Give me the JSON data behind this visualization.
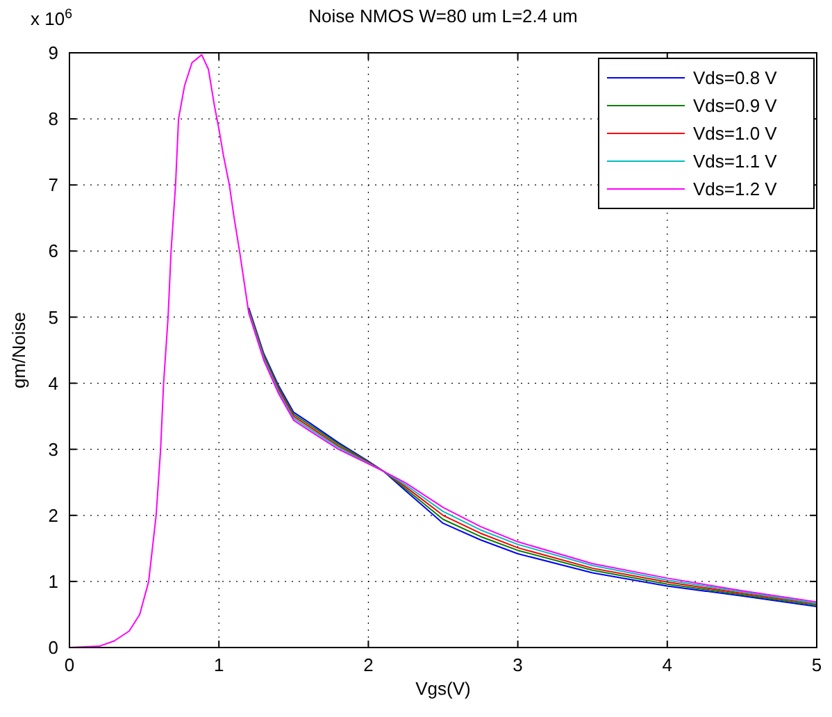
{
  "chart_data": {
    "type": "line",
    "title": "Noise NMOS W=80 um L=2.4 um",
    "xlabel": "Vgs(V)",
    "ylabel": "gm/Noise",
    "annotations": [
      "x 10$^{6}$"
    ],
    "x": [
      0,
      0.2,
      0.3,
      0.4,
      0.47,
      0.53,
      0.58,
      0.61,
      0.63,
      0.66,
      0.68,
      0.71,
      0.73,
      0.77,
      0.82,
      0.885,
      0.93,
      0.97,
      1.0,
      1.03,
      1.07,
      1.1,
      1.14,
      1.2,
      1.3,
      1.4,
      1.5,
      1.6,
      1.8,
      2.0,
      2.1,
      2.25,
      2.5,
      2.75,
      3.0,
      3.5,
      4.0,
      4.5,
      5.0
    ],
    "series": [
      {
        "name": "Vds=0.8 V",
        "color": "#0000ff",
        "values": [
          null,
          null,
          null,
          null,
          null,
          null,
          null,
          null,
          null,
          null,
          null,
          null,
          null,
          null,
          null,
          null,
          null,
          null,
          null,
          null,
          null,
          null,
          null,
          5.14,
          4.45,
          3.96,
          3.56,
          3.41,
          3.1,
          2.82,
          2.67,
          2.37,
          1.88,
          1.63,
          1.42,
          1.13,
          0.93,
          0.78,
          0.62
        ]
      },
      {
        "name": "Vds=0.9 V",
        "color": "#008000",
        "values": [
          null,
          null,
          null,
          null,
          null,
          null,
          null,
          null,
          null,
          null,
          null,
          null,
          null,
          null,
          null,
          null,
          null,
          null,
          null,
          null,
          null,
          null,
          null,
          5.12,
          4.43,
          3.93,
          3.53,
          3.38,
          3.08,
          2.81,
          2.67,
          2.4,
          1.94,
          1.68,
          1.47,
          1.17,
          0.96,
          0.8,
          0.64
        ]
      },
      {
        "name": "Vds=1.0 V",
        "color": "#ff0000",
        "values": [
          null,
          null,
          null,
          null,
          null,
          null,
          null,
          null,
          null,
          null,
          null,
          null,
          null,
          null,
          null,
          null,
          null,
          null,
          null,
          null,
          null,
          null,
          null,
          5.1,
          4.4,
          3.9,
          3.5,
          3.35,
          3.05,
          2.8,
          2.67,
          2.43,
          2.0,
          1.73,
          1.51,
          1.2,
          0.99,
          0.82,
          0.66
        ]
      },
      {
        "name": "Vds=1.1 V",
        "color": "#00bfbf",
        "values": [
          null,
          null,
          null,
          null,
          null,
          null,
          null,
          null,
          null,
          null,
          null,
          null,
          null,
          null,
          null,
          null,
          null,
          null,
          null,
          null,
          null,
          null,
          null,
          5.08,
          4.38,
          3.87,
          3.47,
          3.32,
          3.03,
          2.79,
          2.67,
          2.46,
          2.06,
          1.78,
          1.56,
          1.24,
          1.02,
          0.84,
          0.67
        ]
      },
      {
        "name": "Vds=1.2 V",
        "color": "#ff00ff",
        "values": [
          0,
          0.02,
          0.1,
          0.25,
          0.5,
          1,
          2,
          3,
          4,
          5,
          6,
          7,
          8,
          8.5,
          8.85,
          8.97,
          8.75,
          8.2,
          7.85,
          7.45,
          7.0,
          6.53,
          5.97,
          5.06,
          4.35,
          3.84,
          3.44,
          3.29,
          3.0,
          2.78,
          2.67,
          2.49,
          2.12,
          1.83,
          1.6,
          1.27,
          1.05,
          0.86,
          0.69
        ]
      }
    ],
    "xlim": [
      0,
      5
    ],
    "xticks": [
      0,
      1,
      2,
      3,
      4,
      5
    ],
    "ylim": [
      0,
      9
    ],
    "yticks": [
      0,
      1,
      2,
      3,
      4,
      5,
      6,
      7,
      8,
      9
    ],
    "grid": true,
    "legend": "top right",
    "marker": "none",
    "line_style": "solid"
  }
}
